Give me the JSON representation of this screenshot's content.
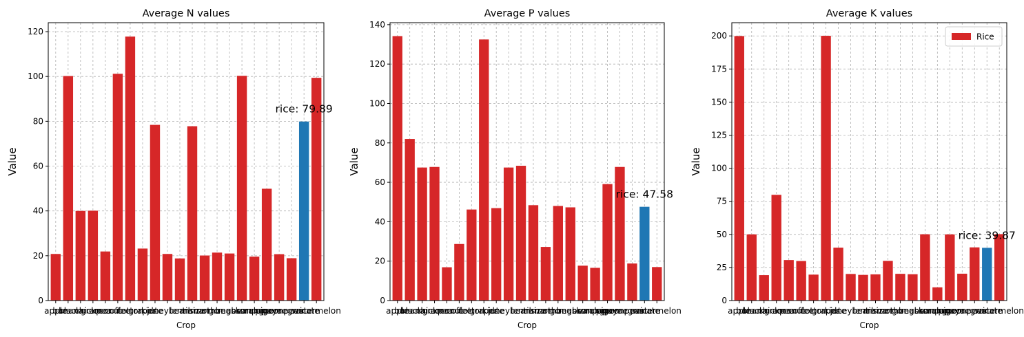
{
  "chart_data": [
    {
      "type": "bar",
      "title": "Average N values",
      "xlabel": "Crop",
      "ylabel": "Value",
      "ylim": [
        0,
        124
      ],
      "yticks": [
        0,
        20,
        40,
        60,
        80,
        100,
        120
      ],
      "grid": true,
      "legend": null,
      "categories": [
        "apple",
        "banana",
        "blackgram",
        "chickpea",
        "coconut",
        "coffee",
        "cotton",
        "grapes",
        "jute",
        "kidneybeans",
        "lentil",
        "maize",
        "mango",
        "mothbeans",
        "mungbean",
        "muskmelon",
        "orange",
        "papaya",
        "pigeonpeas",
        "pomegranate",
        "rice",
        "watermelon"
      ],
      "values": [
        20.8,
        100.2,
        40.0,
        40.1,
        21.9,
        101.2,
        117.8,
        23.2,
        78.4,
        20.8,
        18.8,
        77.8,
        20.1,
        21.4,
        21.0,
        100.3,
        19.6,
        49.9,
        20.7,
        18.9,
        79.89,
        99.4
      ],
      "bar_color": "#d62728",
      "highlight": {
        "category": "rice",
        "color": "#1f77b4"
      },
      "annotation": "rice: 79.89"
    },
    {
      "type": "bar",
      "title": "Average P values",
      "xlabel": "Crop",
      "ylabel": "Value",
      "ylim": [
        0,
        141
      ],
      "yticks": [
        0,
        20,
        40,
        60,
        80,
        100,
        120,
        140
      ],
      "grid": true,
      "legend": null,
      "categories": [
        "apple",
        "banana",
        "blackgram",
        "chickpea",
        "coconut",
        "coffee",
        "cotton",
        "grapes",
        "jute",
        "kidneybeans",
        "lentil",
        "maize",
        "mango",
        "mothbeans",
        "mungbean",
        "muskmelon",
        "orange",
        "papaya",
        "pigeonpeas",
        "pomegranate",
        "rice",
        "watermelon"
      ],
      "values": [
        134.2,
        82.0,
        67.5,
        67.8,
        16.9,
        28.7,
        46.2,
        132.5,
        46.9,
        67.5,
        68.4,
        48.4,
        27.2,
        48.0,
        47.3,
        17.7,
        16.6,
        59.1,
        67.8,
        18.8,
        47.58,
        17.0
      ],
      "bar_color": "#d62728",
      "highlight": {
        "category": "rice",
        "color": "#1f77b4"
      },
      "annotation": "rice: 47.58"
    },
    {
      "type": "bar",
      "title": "Average K values",
      "xlabel": "Crop",
      "ylabel": "Value",
      "ylim": [
        0,
        210
      ],
      "yticks": [
        0,
        25,
        50,
        75,
        100,
        125,
        150,
        175,
        200
      ],
      "grid": true,
      "legend": {
        "placement": "top-right",
        "entries": [
          "Rice"
        ]
      },
      "categories": [
        "apple",
        "banana",
        "blackgram",
        "chickpea",
        "coconut",
        "coffee",
        "cotton",
        "grapes",
        "jute",
        "kidneybeans",
        "lentil",
        "maize",
        "mango",
        "mothbeans",
        "mungbean",
        "muskmelon",
        "orange",
        "papaya",
        "pigeonpeas",
        "pomegranate",
        "rice",
        "watermelon"
      ],
      "values": [
        199.9,
        50.0,
        19.2,
        79.9,
        30.6,
        29.9,
        19.6,
        200.1,
        39.99,
        20.1,
        19.4,
        19.8,
        30.0,
        20.2,
        19.9,
        50.1,
        10.0,
        50.0,
        20.3,
        40.2,
        39.87,
        50.2
      ],
      "bar_color": "#d62728",
      "highlight": {
        "category": "rice",
        "color": "#1f77b4"
      },
      "annotation": "rice: 39.87"
    }
  ]
}
